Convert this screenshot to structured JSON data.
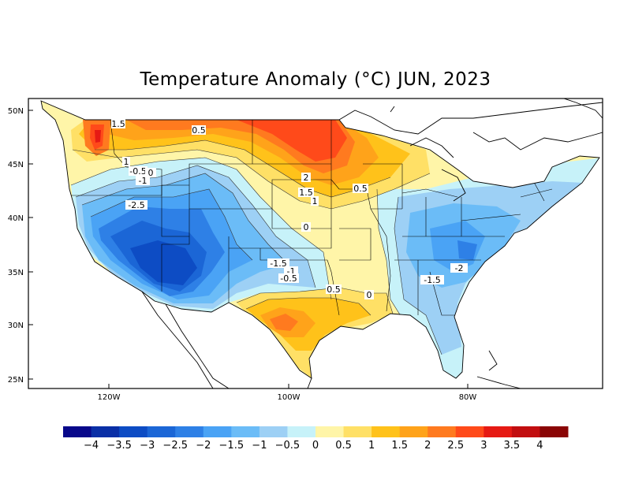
{
  "title": "Temperature Anomaly (°C) JUN, 2023",
  "axes": {
    "lat_labels": [
      "50N",
      "45N",
      "40N",
      "35N",
      "30N",
      "25N"
    ],
    "lon_labels": [
      "120W",
      "100W",
      "80W"
    ]
  },
  "contour_labels": [
    "1.5",
    "0.5",
    "1",
    "-0.5",
    "0",
    "-1",
    "-2.5",
    "2",
    "1.5",
    "1",
    "0.5",
    "0",
    "-1.5",
    "-1",
    "-0.5",
    "0.5",
    "0",
    "-1.5",
    "-2"
  ],
  "colorbar": {
    "labels": [
      "-4",
      "-3.5",
      "-3",
      "-2.5",
      "-2",
      "-1.5",
      "-1",
      "-0.5",
      "0",
      "0.5",
      "1",
      "1.5",
      "2",
      "2.5",
      "3",
      "3.5",
      "4"
    ],
    "colors": [
      "#08088a",
      "#0a2fa6",
      "#0d4cc4",
      "#1b66d6",
      "#2e80e6",
      "#4aa3f5",
      "#6bbcf7",
      "#9dd0f5",
      "#c7f2f9",
      "#fff5a8",
      "#ffe066",
      "#ffc21a",
      "#ffa31a",
      "#ff7a1f",
      "#ff4a1a",
      "#e61a14",
      "#c20e10",
      "#8a0505"
    ]
  }
}
